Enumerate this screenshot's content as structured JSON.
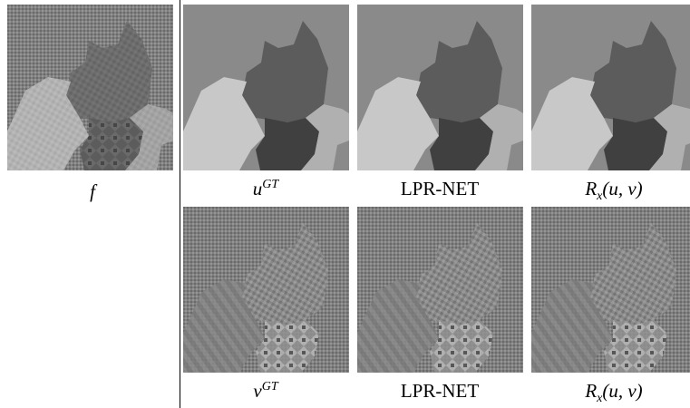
{
  "figure": {
    "input": {
      "label": "f"
    },
    "rows": [
      {
        "panels": [
          {
            "label": "u",
            "sup": "GT"
          },
          {
            "label": "LPR-NET"
          },
          {
            "label": "R",
            "sub": "x",
            "tail": "(u, v)"
          }
        ]
      },
      {
        "panels": [
          {
            "label": "v",
            "sup": "GT"
          },
          {
            "label": "LPR-NET"
          },
          {
            "label": "R",
            "sub": "x",
            "tail": "(u, v)"
          }
        ]
      }
    ]
  }
}
